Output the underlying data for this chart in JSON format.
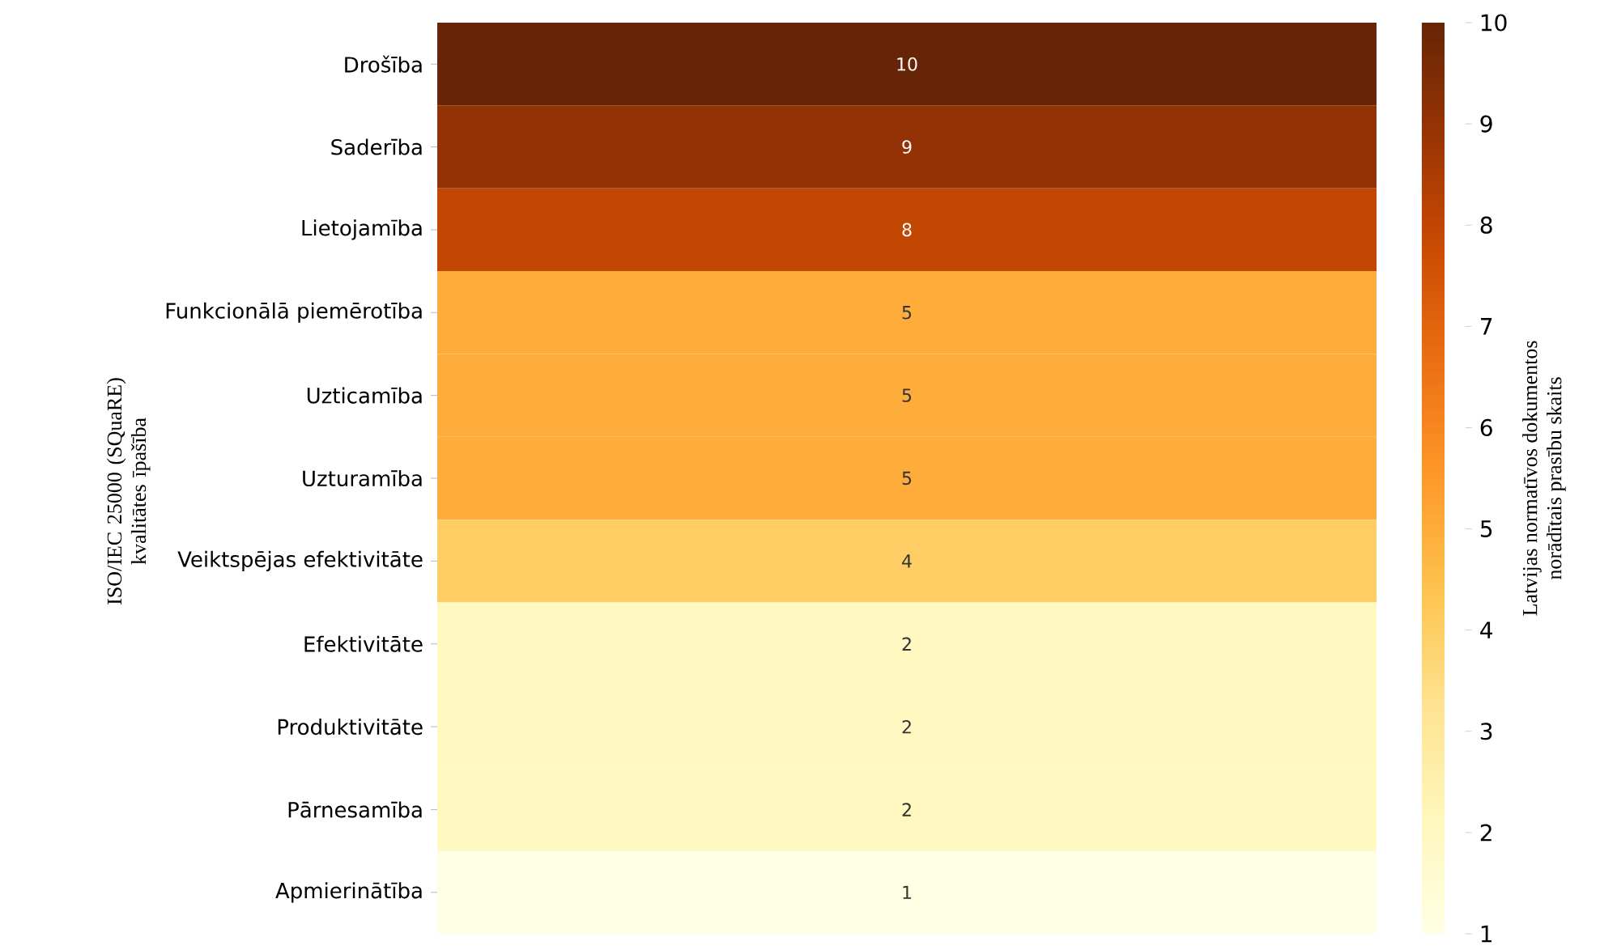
{
  "chart_data": {
    "type": "heatmap",
    "ylabel": "ISO/IEC 25000 (SQuaRE) kvalitātes īpašība",
    "clabel": "Latvijas normatīvos dokumentos norādītais prasību skaits",
    "categories": [
      null
    ],
    "y_categories": [
      "Drošība",
      "Saderība",
      "Lietojamība",
      "Funkcionālā piemērotība",
      "Uzticamība",
      "Uzturamība",
      "Veiktspējas efektivitāte",
      "Efektivitāte",
      "Produktivitāte",
      "Pārnesamība",
      "Apmierinātība"
    ],
    "cells": [
      [
        10
      ],
      [
        9
      ],
      [
        8
      ],
      [
        5
      ],
      [
        5
      ],
      [
        5
      ],
      [
        4
      ],
      [
        2
      ],
      [
        2
      ],
      [
        2
      ],
      [
        1
      ]
    ],
    "data_labels": true,
    "clim": [
      1,
      10
    ],
    "cticks": [
      1,
      2,
      3,
      4,
      5,
      6,
      7,
      8,
      9,
      10
    ]
  }
}
